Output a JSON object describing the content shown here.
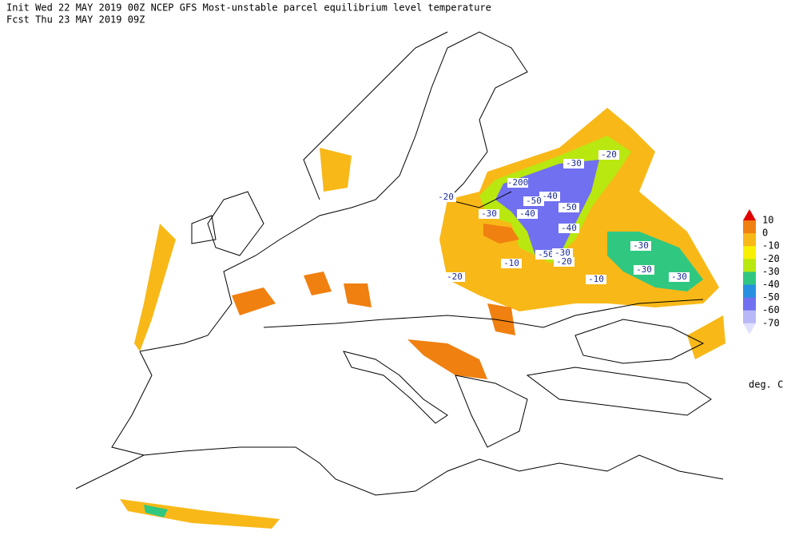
{
  "header": {
    "line1": "Init  Wed 22 MAY 2019 00Z  NCEP GFS Most-unstable parcel equilibrium level temperature",
    "line2": "Fcst Thu 23 MAY 2019 09Z"
  },
  "legend": {
    "labels": [
      "10",
      "0",
      "-10",
      "-20",
      "-30",
      "-40",
      "-50",
      "-60",
      "-70"
    ],
    "colors": [
      "#e00000",
      "#f08010",
      "#f8b818",
      "#f8f000",
      "#b8e810",
      "#30c880",
      "#2890e0",
      "#7070f0",
      "#b8b8f8",
      "#e0e0ff"
    ],
    "unit": "deg. C"
  },
  "contour_labels": [
    "-20",
    "-30",
    "-200",
    "-40",
    "-50",
    "-50",
    "-40",
    "-30",
    "-40",
    "-20",
    "-10",
    "-50",
    "-30",
    "-20",
    "-10",
    "-30",
    "-30",
    "-30",
    "-20"
  ]
}
